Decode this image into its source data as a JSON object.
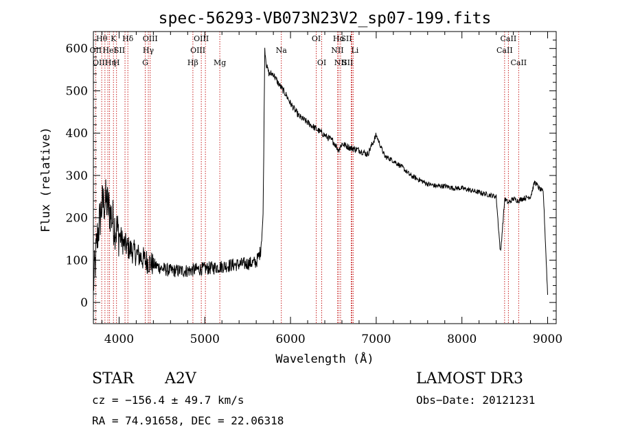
{
  "chart_data": {
    "type": "line",
    "title": "spec-56293-VB073N23V2_sp07-199.fits",
    "xlabel": "Wavelength (Å)",
    "ylabel": "Flux (relative)",
    "xlim": [
      3700,
      9100
    ],
    "ylim": [
      -50,
      640
    ],
    "x_ticks": [
      4000,
      5000,
      6000,
      7000,
      8000,
      9000
    ],
    "y_ticks": [
      0,
      100,
      200,
      300,
      400,
      500,
      600
    ],
    "series": [
      {
        "name": "flux",
        "color": "#000000",
        "x": [
          3700,
          3750,
          3800,
          3850,
          3900,
          3950,
          4000,
          4050,
          4100,
          4200,
          4300,
          4400,
          4500,
          4600,
          4700,
          4800,
          4900,
          5000,
          5100,
          5200,
          5300,
          5400,
          5500,
          5600,
          5650,
          5680,
          5700,
          5720,
          5750,
          5800,
          5850,
          5900,
          5950,
          6000,
          6100,
          6200,
          6300,
          6400,
          6500,
          6560,
          6600,
          6700,
          6800,
          6900,
          7000,
          7100,
          7200,
          7300,
          7400,
          7500,
          7600,
          7700,
          7800,
          7900,
          8000,
          8100,
          8200,
          8300,
          8400,
          8450,
          8500,
          8540,
          8600,
          8660,
          8700,
          8800,
          8850,
          8900,
          8950,
          9000
        ],
        "y": [
          40,
          160,
          230,
          240,
          210,
          180,
          160,
          140,
          130,
          115,
          100,
          90,
          80,
          75,
          75,
          75,
          78,
          80,
          82,
          85,
          88,
          90,
          92,
          95,
          120,
          200,
          600,
          560,
          540,
          540,
          520,
          505,
          490,
          470,
          440,
          425,
          410,
          395,
          380,
          360,
          375,
          365,
          360,
          350,
          395,
          345,
          335,
          320,
          300,
          290,
          280,
          275,
          275,
          270,
          270,
          265,
          260,
          255,
          250,
          115,
          245,
          235,
          245,
          240,
          245,
          250,
          285,
          270,
          260,
          20
        ]
      }
    ],
    "spectral_lines": [
      {
        "label": "Hθ",
        "x": 3797,
        "row": 0,
        "anchor": "middle"
      },
      {
        "label": "K",
        "x": 3934,
        "row": 0,
        "anchor": "middle"
      },
      {
        "label": "Hδ",
        "x": 4102,
        "row": 0,
        "anchor": "middle"
      },
      {
        "label": "OII",
        "x": 3727,
        "row": 1,
        "anchor": "middle"
      },
      {
        "label": "HeI",
        "x": 3889,
        "row": 1,
        "anchor": "middle"
      },
      {
        "label": "SII",
        "x": 4069,
        "row": 1,
        "anchor": "end"
      },
      {
        "label": "OIII",
        "x": 3869,
        "row": 2,
        "anchor": "end"
      },
      {
        "label": "Hη",
        "x": 3835,
        "row": 2,
        "anchor": "start"
      },
      {
        "label": "H",
        "x": 3970,
        "row": 2,
        "anchor": "middle"
      },
      {
        "label": "OIII",
        "x": 4363,
        "row": 0,
        "anchor": "middle"
      },
      {
        "label": "Hγ",
        "x": 4341,
        "row": 1,
        "anchor": "middle"
      },
      {
        "label": "G",
        "x": 4305,
        "row": 2,
        "anchor": "middle"
      },
      {
        "label": "OIII",
        "x": 4959,
        "row": 0,
        "anchor": "middle"
      },
      {
        "label": "OIII",
        "x": 5007,
        "row": 1,
        "anchor": "end"
      },
      {
        "label": "Hβ",
        "x": 4861,
        "row": 2,
        "anchor": "middle"
      },
      {
        "label": "Mg",
        "x": 5175,
        "row": 2,
        "anchor": "middle"
      },
      {
        "label": "Na",
        "x": 5893,
        "row": 1,
        "anchor": "middle"
      },
      {
        "label": "OI",
        "x": 6300,
        "row": 0,
        "anchor": "middle"
      },
      {
        "label": "OI",
        "x": 6364,
        "row": 2,
        "anchor": "middle"
      },
      {
        "label": "Hα",
        "x": 6563,
        "row": 0,
        "anchor": "middle"
      },
      {
        "label": "NII",
        "x": 6548,
        "row": 1,
        "anchor": "middle"
      },
      {
        "label": "NII",
        "x": 6584,
        "row": 2,
        "anchor": "middle"
      },
      {
        "label": "SII",
        "x": 6717,
        "row": 0,
        "anchor": "end"
      },
      {
        "label": "Li",
        "x": 6708,
        "row": 1,
        "anchor": "start"
      },
      {
        "label": "SII",
        "x": 6731,
        "row": 2,
        "anchor": "end"
      },
      {
        "label": "CaII",
        "x": 8498,
        "row": 1,
        "anchor": "middle"
      },
      {
        "label": "CaII",
        "x": 8542,
        "row": 0,
        "anchor": "middle"
      },
      {
        "label": "CaII",
        "x": 8662,
        "row": 2,
        "anchor": "middle"
      }
    ]
  },
  "info": {
    "object_class": "STAR",
    "subclass": "A2V",
    "survey": "LAMOST DR3",
    "cz": "cz = −156.4 ± 49.7 km/s",
    "obs_date": "Obs−Date: 20121231",
    "coords": "RA =  74.91658, DEC =  22.06318"
  }
}
